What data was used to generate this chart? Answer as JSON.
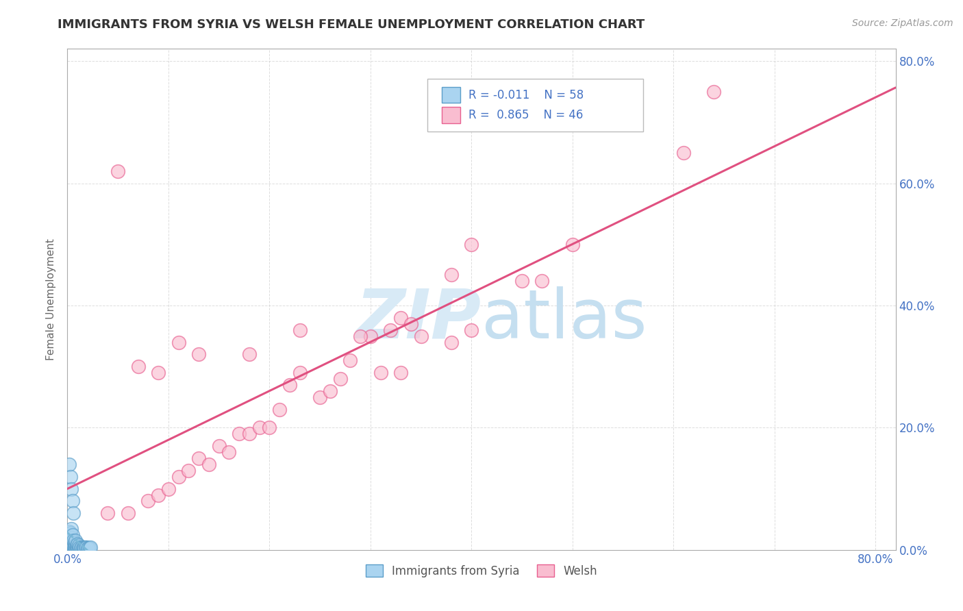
{
  "title": "IMMIGRANTS FROM SYRIA VS WELSH FEMALE UNEMPLOYMENT CORRELATION CHART",
  "source_text": "Source: ZipAtlas.com",
  "ylabel": "Female Unemployment",
  "legend_r1": "R = -0.011",
  "legend_n1": "N = 58",
  "legend_r2": "R = 0.865",
  "legend_n2": "N = 46",
  "syria_color": "#aad4f0",
  "welsh_color": "#f9bdd0",
  "syria_edge_color": "#5b9ec9",
  "welsh_edge_color": "#e86090",
  "regression_line_welsh_color": "#e05080",
  "regression_line_syria_color": "#7ab8d8",
  "watermark_zip_color": "#d8eaf6",
  "watermark_atlas_color": "#c5dff0",
  "background_color": "#ffffff",
  "grid_color": "#c8c8c8",
  "title_color": "#333333",
  "axis_label_color": "#4472c4",
  "xlim": [
    0.0,
    0.82
  ],
  "ylim": [
    0.0,
    0.82
  ],
  "x_ticks": [
    0.0,
    0.1,
    0.2,
    0.3,
    0.4,
    0.5,
    0.6,
    0.7,
    0.8
  ],
  "y_ticks": [
    0.0,
    0.2,
    0.4,
    0.6,
    0.8
  ],
  "syria_x": [
    0.001,
    0.001,
    0.001,
    0.001,
    0.002,
    0.002,
    0.002,
    0.002,
    0.002,
    0.002,
    0.002,
    0.002,
    0.003,
    0.003,
    0.003,
    0.003,
    0.003,
    0.004,
    0.004,
    0.004,
    0.004,
    0.004,
    0.005,
    0.005,
    0.005,
    0.005,
    0.006,
    0.006,
    0.006,
    0.007,
    0.007,
    0.007,
    0.008,
    0.008,
    0.008,
    0.009,
    0.009,
    0.01,
    0.01,
    0.011,
    0.011,
    0.012,
    0.013,
    0.014,
    0.015,
    0.016,
    0.017,
    0.018,
    0.019,
    0.02,
    0.021,
    0.022,
    0.023,
    0.002,
    0.003,
    0.004,
    0.005,
    0.006
  ],
  "syria_y": [
    0.005,
    0.01,
    0.015,
    0.025,
    0.003,
    0.006,
    0.008,
    0.01,
    0.012,
    0.018,
    0.022,
    0.03,
    0.004,
    0.007,
    0.012,
    0.016,
    0.028,
    0.005,
    0.009,
    0.014,
    0.02,
    0.035,
    0.003,
    0.006,
    0.011,
    0.025,
    0.004,
    0.008,
    0.015,
    0.003,
    0.007,
    0.012,
    0.004,
    0.009,
    0.016,
    0.003,
    0.008,
    0.004,
    0.01,
    0.003,
    0.008,
    0.004,
    0.003,
    0.004,
    0.003,
    0.004,
    0.003,
    0.004,
    0.004,
    0.003,
    0.003,
    0.003,
    0.004,
    0.14,
    0.12,
    0.1,
    0.08,
    0.06
  ],
  "welsh_x": [
    0.04,
    0.06,
    0.08,
    0.09,
    0.1,
    0.11,
    0.12,
    0.13,
    0.14,
    0.15,
    0.16,
    0.17,
    0.18,
    0.19,
    0.2,
    0.21,
    0.22,
    0.23,
    0.25,
    0.26,
    0.27,
    0.28,
    0.3,
    0.31,
    0.32,
    0.33,
    0.35,
    0.38,
    0.4,
    0.45,
    0.47,
    0.5,
    0.38,
    0.4,
    0.05,
    0.07,
    0.09,
    0.11,
    0.13,
    0.34,
    0.61,
    0.64,
    0.33,
    0.29,
    0.23,
    0.18
  ],
  "welsh_y": [
    0.06,
    0.06,
    0.08,
    0.09,
    0.1,
    0.12,
    0.13,
    0.15,
    0.14,
    0.17,
    0.16,
    0.19,
    0.19,
    0.2,
    0.2,
    0.23,
    0.27,
    0.29,
    0.25,
    0.26,
    0.28,
    0.31,
    0.35,
    0.29,
    0.36,
    0.38,
    0.35,
    0.34,
    0.36,
    0.44,
    0.44,
    0.5,
    0.45,
    0.5,
    0.62,
    0.3,
    0.29,
    0.34,
    0.32,
    0.37,
    0.65,
    0.75,
    0.29,
    0.35,
    0.36,
    0.32
  ]
}
